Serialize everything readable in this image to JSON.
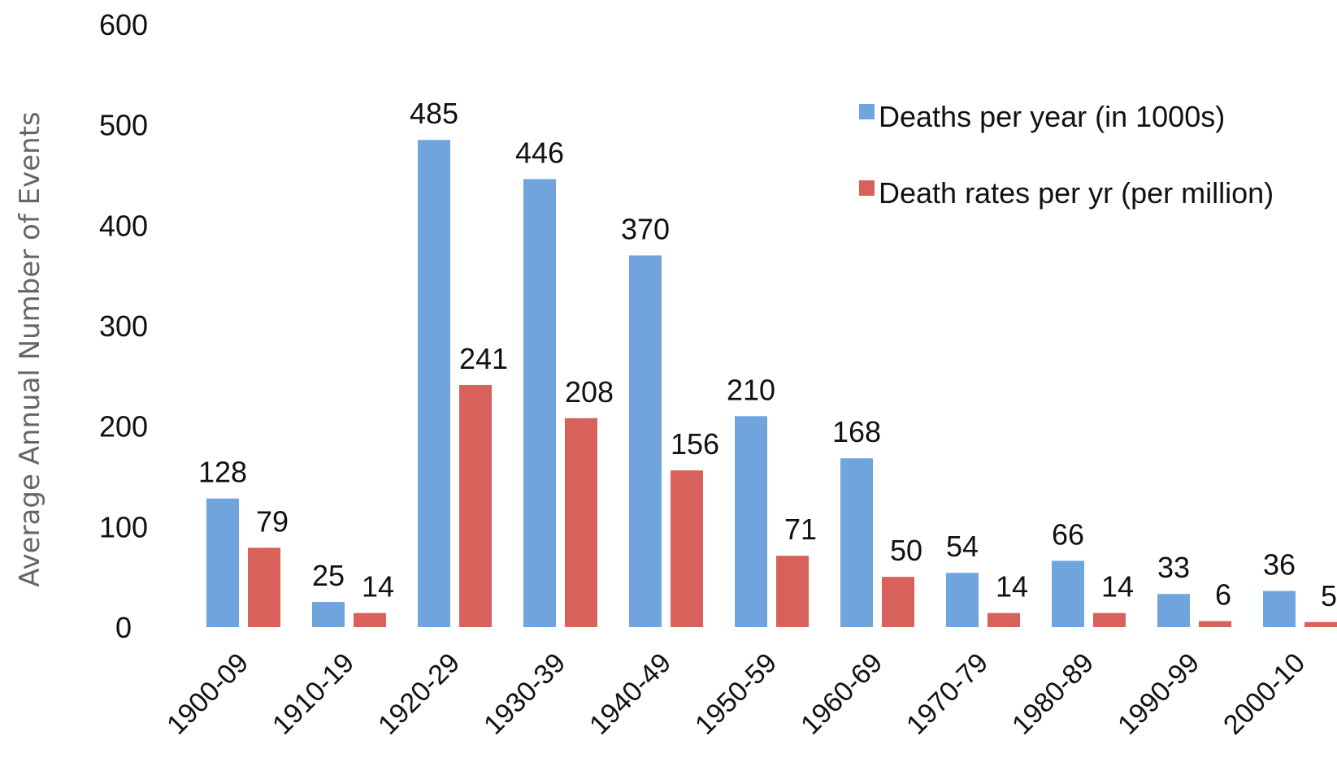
{
  "chart_data": {
    "type": "bar",
    "title": "",
    "xlabel": "",
    "ylabel": "Average Annual Number of Events",
    "ylim": [
      0,
      600
    ],
    "yticks": [
      0,
      100,
      200,
      300,
      400,
      500,
      600
    ],
    "grid": false,
    "legend_position": "top-right",
    "categories": [
      "1900-09",
      "1910-19",
      "1920-29",
      "1930-39",
      "1940-49",
      "1950-59",
      "1960-69",
      "1970-79",
      "1980-89",
      "1990-99",
      "2000-10"
    ],
    "series": [
      {
        "name": "Deaths per year (in 1000s)",
        "color": "#6fa5dc",
        "values": [
          128,
          25,
          485,
          446,
          370,
          210,
          168,
          54,
          66,
          33,
          36
        ]
      },
      {
        "name": "Death rates per yr (per million)",
        "color": "#d9615c",
        "values": [
          79,
          14,
          241,
          208,
          156,
          71,
          50,
          14,
          14,
          6,
          5
        ]
      }
    ]
  }
}
